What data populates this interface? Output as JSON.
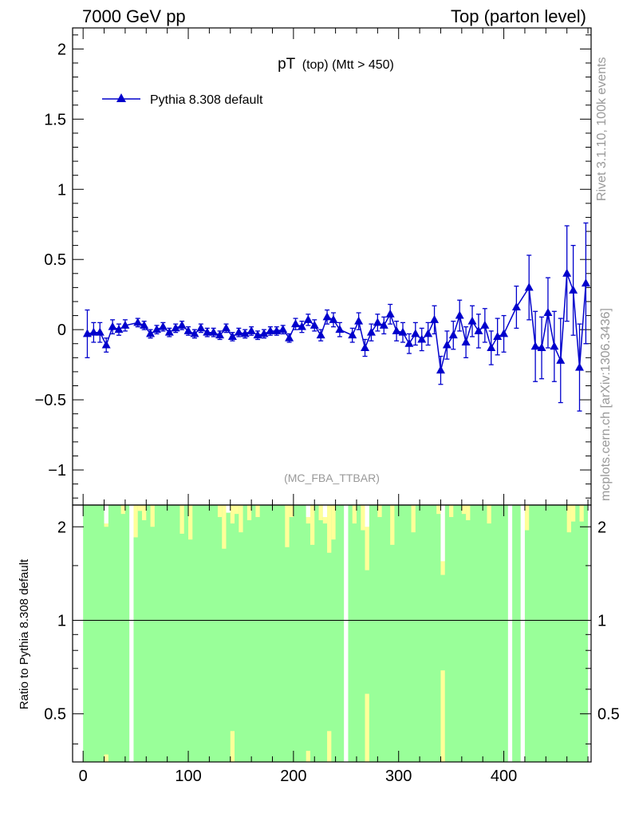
{
  "header": {
    "left": "7000 GeV pp",
    "right": "Top (parton level)"
  },
  "side_labels": {
    "rivet": "Rivet 3.1.10,  100k events",
    "mcplots": "mcplots.cern.ch [arXiv:1306.3436]"
  },
  "colors": {
    "series": "#0000cc",
    "band_inner": "#99ff99",
    "band_outer": "#ffff99",
    "axis": "#000000",
    "watermark": "#999999"
  },
  "chart_data": [
    {
      "type": "line",
      "title_main": "pT",
      "title_sub": "(top) (Mtt > 450)",
      "annotation": "(MC_FBA_TTBAR)",
      "ylim": [
        -1.25,
        2.15
      ],
      "xlim": [
        -10,
        483
      ],
      "yticks": [
        {
          "v": 2,
          "label": "2"
        },
        {
          "v": 1.5,
          "label": "1.5"
        },
        {
          "v": 1,
          "label": "1"
        },
        {
          "v": 0.5,
          "label": "0.5"
        },
        {
          "v": 0,
          "label": "0"
        },
        {
          "v": -0.5,
          "label": "−0.5"
        },
        {
          "v": -1,
          "label": "−1"
        }
      ],
      "marker": "triangle-up",
      "series": [
        {
          "name": "Pythia 8.308 default",
          "points": [
            {
              "x": 4,
              "y": -0.03,
              "err": 0.17
            },
            {
              "x": 10,
              "y": -0.02,
              "err": 0.07
            },
            {
              "x": 16,
              "y": -0.02,
              "err": 0.07
            },
            {
              "x": 22,
              "y": -0.11,
              "err": 0.05
            },
            {
              "x": 28,
              "y": 0.02,
              "err": 0.05
            },
            {
              "x": 34,
              "y": 0.0,
              "err": 0.04
            },
            {
              "x": 40,
              "y": 0.03,
              "err": 0.04
            },
            {
              "x": 52,
              "y": 0.05,
              "err": 0.03
            },
            {
              "x": 58,
              "y": 0.03,
              "err": 0.03
            },
            {
              "x": 64,
              "y": -0.03,
              "err": 0.03
            },
            {
              "x": 70,
              "y": 0.0,
              "err": 0.03
            },
            {
              "x": 76,
              "y": 0.02,
              "err": 0.03
            },
            {
              "x": 82,
              "y": -0.02,
              "err": 0.03
            },
            {
              "x": 88,
              "y": 0.01,
              "err": 0.03
            },
            {
              "x": 94,
              "y": 0.03,
              "err": 0.03
            },
            {
              "x": 100,
              "y": -0.01,
              "err": 0.03
            },
            {
              "x": 106,
              "y": -0.03,
              "err": 0.03
            },
            {
              "x": 112,
              "y": 0.01,
              "err": 0.03
            },
            {
              "x": 118,
              "y": -0.02,
              "err": 0.03
            },
            {
              "x": 124,
              "y": -0.02,
              "err": 0.03
            },
            {
              "x": 130,
              "y": -0.04,
              "err": 0.03
            },
            {
              "x": 136,
              "y": 0.01,
              "err": 0.03
            },
            {
              "x": 142,
              "y": -0.05,
              "err": 0.03
            },
            {
              "x": 148,
              "y": -0.02,
              "err": 0.03
            },
            {
              "x": 154,
              "y": -0.03,
              "err": 0.03
            },
            {
              "x": 160,
              "y": -0.01,
              "err": 0.03
            },
            {
              "x": 166,
              "y": -0.04,
              "err": 0.03
            },
            {
              "x": 172,
              "y": -0.03,
              "err": 0.03
            },
            {
              "x": 178,
              "y": -0.01,
              "err": 0.03
            },
            {
              "x": 184,
              "y": -0.01,
              "err": 0.03
            },
            {
              "x": 190,
              "y": 0.0,
              "err": 0.03
            },
            {
              "x": 196,
              "y": -0.06,
              "err": 0.03
            },
            {
              "x": 202,
              "y": 0.04,
              "err": 0.04
            },
            {
              "x": 208,
              "y": 0.02,
              "err": 0.04
            },
            {
              "x": 214,
              "y": 0.07,
              "err": 0.04
            },
            {
              "x": 220,
              "y": 0.03,
              "err": 0.04
            },
            {
              "x": 226,
              "y": -0.04,
              "err": 0.04
            },
            {
              "x": 232,
              "y": 0.09,
              "err": 0.05
            },
            {
              "x": 238,
              "y": 0.07,
              "err": 0.05
            },
            {
              "x": 244,
              "y": 0.0,
              "err": 0.05
            },
            {
              "x": 256,
              "y": -0.04,
              "err": 0.05
            },
            {
              "x": 262,
              "y": 0.06,
              "err": 0.06
            },
            {
              "x": 268,
              "y": -0.13,
              "err": 0.06
            },
            {
              "x": 274,
              "y": -0.02,
              "err": 0.06
            },
            {
              "x": 280,
              "y": 0.05,
              "err": 0.06
            },
            {
              "x": 286,
              "y": 0.03,
              "err": 0.06
            },
            {
              "x": 292,
              "y": 0.11,
              "err": 0.07
            },
            {
              "x": 298,
              "y": -0.01,
              "err": 0.07
            },
            {
              "x": 304,
              "y": -0.02,
              "err": 0.07
            },
            {
              "x": 310,
              "y": -0.1,
              "err": 0.07
            },
            {
              "x": 316,
              "y": -0.03,
              "err": 0.08
            },
            {
              "x": 322,
              "y": -0.07,
              "err": 0.08
            },
            {
              "x": 328,
              "y": -0.03,
              "err": 0.08
            },
            {
              "x": 334,
              "y": 0.07,
              "err": 0.1
            },
            {
              "x": 340,
              "y": -0.29,
              "err": 0.1
            },
            {
              "x": 346,
              "y": -0.11,
              "err": 0.1
            },
            {
              "x": 352,
              "y": -0.04,
              "err": 0.1
            },
            {
              "x": 358,
              "y": 0.1,
              "err": 0.11
            },
            {
              "x": 364,
              "y": -0.09,
              "err": 0.11
            },
            {
              "x": 370,
              "y": 0.06,
              "err": 0.11
            },
            {
              "x": 376,
              "y": -0.01,
              "err": 0.12
            },
            {
              "x": 382,
              "y": 0.03,
              "err": 0.12
            },
            {
              "x": 388,
              "y": -0.13,
              "err": 0.12
            },
            {
              "x": 394,
              "y": -0.05,
              "err": 0.13
            },
            {
              "x": 400,
              "y": -0.03,
              "err": 0.13
            },
            {
              "x": 412,
              "y": 0.16,
              "err": 0.15
            },
            {
              "x": 424,
              "y": 0.3,
              "err": 0.23
            },
            {
              "x": 430,
              "y": -0.12,
              "err": 0.25
            },
            {
              "x": 436,
              "y": -0.13,
              "err": 0.22
            },
            {
              "x": 442,
              "y": 0.12,
              "err": 0.25
            },
            {
              "x": 448,
              "y": -0.12,
              "err": 0.25
            },
            {
              "x": 454,
              "y": -0.22,
              "err": 0.3
            },
            {
              "x": 460,
              "y": 0.4,
              "err": 0.34
            },
            {
              "x": 466,
              "y": 0.28,
              "err": 0.32
            },
            {
              "x": 472,
              "y": -0.27,
              "err": 0.31
            },
            {
              "x": 478,
              "y": 0.33,
              "err": 0.43
            }
          ]
        }
      ]
    },
    {
      "type": "area",
      "ylabel": "Ratio to Pythia 8.308 default",
      "yscale": "log",
      "ylim": [
        0.35,
        2.35
      ],
      "xlim": [
        -10,
        483
      ],
      "yticks": [
        {
          "v": 2,
          "label": "2"
        },
        {
          "v": 1,
          "label": "1"
        },
        {
          "v": 0.5,
          "label": "0.5"
        }
      ],
      "xticks": [
        {
          "v": 0,
          "label": "0"
        },
        {
          "v": 100,
          "label": "100"
        },
        {
          "v": 200,
          "label": "200"
        },
        {
          "v": 300,
          "label": "300"
        },
        {
          "v": 400,
          "label": "400"
        }
      ],
      "reference_line": 1,
      "gaps": [
        {
          "x0": 44,
          "x1": 48
        },
        {
          "x0": 248,
          "x1": 252
        },
        {
          "x0": 404,
          "x1": 408
        },
        {
          "x0": 416,
          "x1": 420
        }
      ],
      "yellow_top": [
        {
          "x0": 20,
          "x1": 24,
          "y": 2.0
        },
        {
          "x0": 36,
          "x1": 40,
          "y": 2.2
        },
        {
          "x0": 48,
          "x1": 52,
          "y": 1.85
        },
        {
          "x0": 52,
          "x1": 56,
          "y": 2.25
        },
        {
          "x0": 56,
          "x1": 60,
          "y": 2.1
        },
        {
          "x0": 64,
          "x1": 68,
          "y": 2.0
        },
        {
          "x0": 92,
          "x1": 96,
          "y": 1.9
        },
        {
          "x0": 100,
          "x1": 104,
          "y": 1.82
        },
        {
          "x0": 128,
          "x1": 132,
          "y": 2.15
        },
        {
          "x0": 132,
          "x1": 136,
          "y": 1.7
        },
        {
          "x0": 140,
          "x1": 144,
          "y": 2.05
        },
        {
          "x0": 144,
          "x1": 148,
          "y": 2.2
        },
        {
          "x0": 148,
          "x1": 152,
          "y": 1.92
        },
        {
          "x0": 156,
          "x1": 160,
          "y": 2.1
        },
        {
          "x0": 164,
          "x1": 168,
          "y": 2.15
        },
        {
          "x0": 192,
          "x1": 196,
          "y": 1.72
        },
        {
          "x0": 196,
          "x1": 200,
          "y": 2.15
        },
        {
          "x0": 212,
          "x1": 216,
          "y": 2.05
        },
        {
          "x0": 216,
          "x1": 220,
          "y": 1.75
        },
        {
          "x0": 224,
          "x1": 228,
          "y": 2.1
        },
        {
          "x0": 228,
          "x1": 232,
          "y": 2.05
        },
        {
          "x0": 232,
          "x1": 236,
          "y": 1.65
        },
        {
          "x0": 236,
          "x1": 240,
          "y": 1.82
        },
        {
          "x0": 256,
          "x1": 260,
          "y": 2.05
        },
        {
          "x0": 264,
          "x1": 268,
          "y": 1.95
        },
        {
          "x0": 268,
          "x1": 272,
          "y": 1.45
        },
        {
          "x0": 280,
          "x1": 284,
          "y": 2.15
        },
        {
          "x0": 292,
          "x1": 296,
          "y": 1.75
        },
        {
          "x0": 312,
          "x1": 316,
          "y": 1.92
        },
        {
          "x0": 336,
          "x1": 340,
          "y": 2.2
        },
        {
          "x0": 340,
          "x1": 344,
          "y": 1.4
        },
        {
          "x0": 348,
          "x1": 352,
          "y": 2.15
        },
        {
          "x0": 360,
          "x1": 364,
          "y": 2.2
        },
        {
          "x0": 364,
          "x1": 368,
          "y": 2.1
        },
        {
          "x0": 384,
          "x1": 388,
          "y": 2.05
        },
        {
          "x0": 420,
          "x1": 424,
          "y": 1.95
        },
        {
          "x0": 460,
          "x1": 464,
          "y": 1.92
        },
        {
          "x0": 464,
          "x1": 468,
          "y": 2.08
        },
        {
          "x0": 472,
          "x1": 476,
          "y": 2.08
        }
      ],
      "yellow_bottom": [
        {
          "x0": 20,
          "x1": 24,
          "y": 0.37
        },
        {
          "x0": 140,
          "x1": 144,
          "y": 0.44
        },
        {
          "x0": 212,
          "x1": 216,
          "y": 0.38
        },
        {
          "x0": 232,
          "x1": 236,
          "y": 0.44
        },
        {
          "x0": 268,
          "x1": 272,
          "y": 0.58
        },
        {
          "x0": 340,
          "x1": 344,
          "y": 0.69
        }
      ],
      "white_top": [
        {
          "x0": 20,
          "x1": 24,
          "y": 2.05
        },
        {
          "x0": 136,
          "x1": 140,
          "y": 2.22
        },
        {
          "x0": 212,
          "x1": 216,
          "y": 2.15
        },
        {
          "x0": 228,
          "x1": 232,
          "y": 2.15
        },
        {
          "x0": 268,
          "x1": 272,
          "y": 2.0
        },
        {
          "x0": 340,
          "x1": 344,
          "y": 1.55
        }
      ]
    }
  ]
}
